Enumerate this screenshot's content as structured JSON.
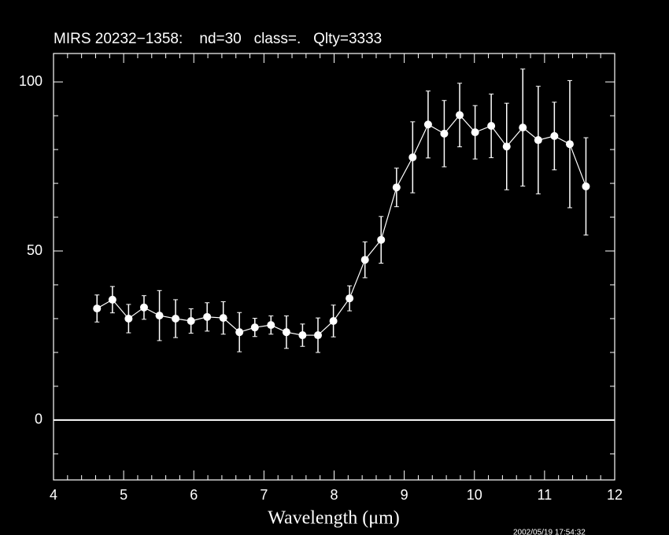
{
  "chart_data": {
    "type": "errorbar",
    "title": "MIRS 20232−1358:    nd=30   class=.   Qlty=3333",
    "x_label": "Wavelength (μm)",
    "timestamp": "2002/05/19 17:54:32",
    "color": "#ffffff",
    "zero_line": true,
    "xlim": [
      4,
      12
    ],
    "xticks": [
      4,
      5,
      6,
      7,
      8,
      9,
      10,
      11,
      12
    ],
    "xminorticks": [
      4.2,
      4.4,
      4.6,
      4.8,
      5.2,
      5.4,
      5.6,
      5.8,
      6.2,
      6.4,
      6.6,
      6.8,
      7.2,
      7.4,
      7.6,
      7.8,
      8.2,
      8.4,
      8.6,
      8.8,
      9.2,
      9.4,
      9.6,
      9.8,
      10.2,
      10.4,
      10.6,
      10.8,
      11.2,
      11.4,
      11.6,
      11.8
    ],
    "ylim": [
      -17.7,
      108.4
    ],
    "yticks": [
      0,
      50,
      100
    ],
    "yminorticks": [
      -10,
      10,
      20,
      30,
      40,
      60,
      70,
      80,
      90
    ],
    "x": [
      4.62,
      4.84,
      5.07,
      5.29,
      5.51,
      5.74,
      5.96,
      6.19,
      6.42,
      6.65,
      6.87,
      7.1,
      7.32,
      7.55,
      7.77,
      7.99,
      8.22,
      8.44,
      8.67,
      8.89,
      9.12,
      9.34,
      9.57,
      9.79,
      10.01,
      10.24,
      10.46,
      10.69,
      10.91,
      11.14,
      11.36,
      11.59
    ],
    "values": [
      33.0,
      35.6,
      30.0,
      33.3,
      30.9,
      30.0,
      29.3,
      30.5,
      30.2,
      26.0,
      27.4,
      28.1,
      26.0,
      25.1,
      25.1,
      29.3,
      36.0,
      47.4,
      53.3,
      68.8,
      77.7,
      87.4,
      84.7,
      90.2,
      85.1,
      87.0,
      80.9,
      86.5,
      82.8,
      84.0,
      81.6,
      69.1
    ],
    "errors": [
      4.0,
      3.9,
      4.2,
      3.5,
      7.4,
      5.6,
      3.6,
      4.2,
      4.8,
      5.8,
      2.7,
      2.7,
      4.8,
      3.3,
      5.1,
      4.7,
      3.7,
      5.3,
      6.9,
      5.7,
      10.5,
      9.9,
      9.8,
      9.4,
      7.9,
      9.4,
      12.8,
      17.3,
      15.9,
      10.0,
      18.8,
      14.4
    ]
  }
}
